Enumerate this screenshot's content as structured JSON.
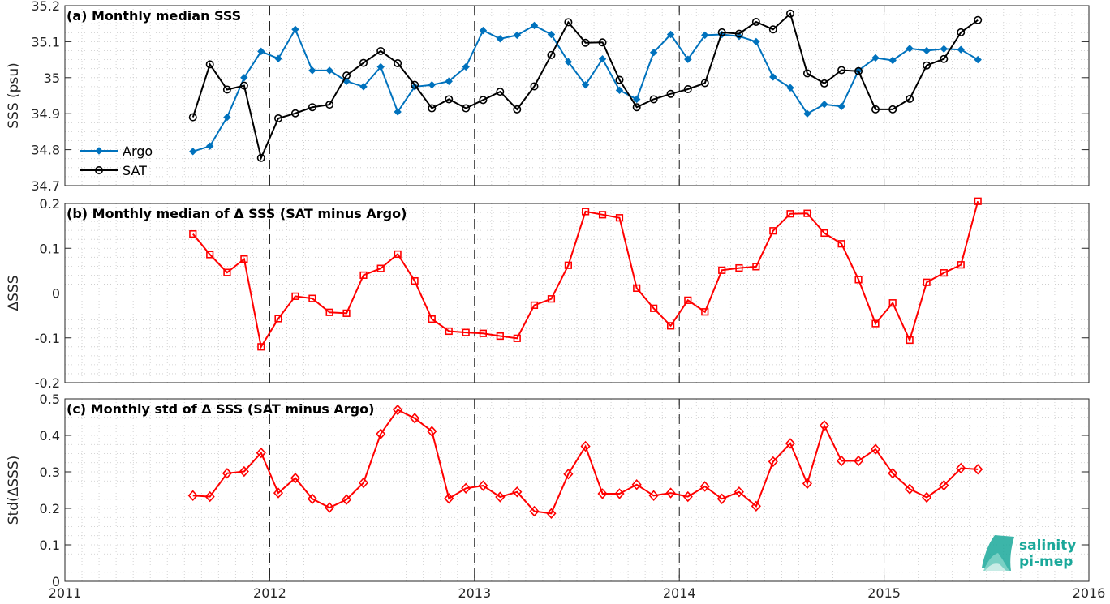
{
  "chart_data": [
    {
      "type": "line",
      "title": "(a) Monthly median SSS",
      "ylabel": "SSS (psu)",
      "xlim": [
        2011,
        2016
      ],
      "ylim": [
        34.7,
        35.2
      ],
      "yticks": [
        "34.7",
        "34.8",
        "34.9",
        "35",
        "35.1",
        "35.2"
      ],
      "ytick_values": [
        34.7,
        34.8,
        34.9,
        35.0,
        35.1,
        35.2
      ],
      "grid": "dotted",
      "legend": "left",
      "vlines": [
        2012,
        2013,
        2014,
        2015
      ],
      "x": [
        2011.625,
        2011.708,
        2011.792,
        2011.875,
        2011.958,
        2012.042,
        2012.125,
        2012.208,
        2012.292,
        2012.375,
        2012.458,
        2012.542,
        2012.625,
        2012.708,
        2012.792,
        2012.875,
        2012.958,
        2013.042,
        2013.125,
        2013.208,
        2013.292,
        2013.375,
        2013.458,
        2013.542,
        2013.625,
        2013.708,
        2013.792,
        2013.875,
        2013.958,
        2014.042,
        2014.125,
        2014.208,
        2014.292,
        2014.375,
        2014.458,
        2014.542,
        2014.625,
        2014.708,
        2014.792,
        2014.875,
        2014.958,
        2015.042,
        2015.125,
        2015.208,
        2015.292,
        2015.375,
        2015.458
      ],
      "series": [
        {
          "name": "Argo",
          "color": "#0072bd",
          "marker": "diamond-filled",
          "values": [
            34.795,
            34.81,
            34.89,
            35.0,
            35.073,
            35.053,
            35.134,
            35.02,
            35.02,
            34.99,
            34.975,
            35.03,
            34.905,
            34.975,
            34.98,
            34.99,
            35.03,
            35.131,
            35.108,
            35.118,
            35.145,
            35.12,
            35.044,
            34.98,
            35.052,
            34.965,
            34.94,
            35.07,
            35.12,
            35.051,
            35.118,
            35.12,
            35.115,
            35.1,
            35.002,
            34.972,
            34.9,
            34.926,
            34.92,
            35.02,
            35.055,
            35.048,
            35.081,
            35.075,
            35.08,
            35.078,
            35.05
          ]
        },
        {
          "name": "SAT",
          "color": "#000000",
          "marker": "circle-open",
          "values": [
            34.89,
            35.037,
            34.967,
            34.978,
            34.777,
            34.887,
            34.901,
            34.918,
            34.925,
            35.006,
            35.041,
            35.074,
            35.04,
            34.98,
            34.915,
            34.94,
            34.915,
            34.938,
            34.961,
            34.912,
            34.976,
            35.063,
            35.154,
            35.097,
            35.098,
            34.994,
            34.918,
            34.94,
            34.955,
            34.968,
            34.985,
            35.126,
            35.122,
            35.155,
            35.134,
            35.178,
            35.012,
            34.984,
            35.021,
            35.018,
            34.912,
            34.912,
            34.941,
            35.034,
            35.052,
            35.126,
            35.16
          ]
        }
      ]
    },
    {
      "type": "line",
      "title": "(b) Monthly median of Δ SSS (SAT minus Argo)",
      "ylabel": "ΔSSS",
      "xlim": [
        2011,
        2016
      ],
      "ylim": [
        -0.2,
        0.2
      ],
      "yticks": [
        "-0.2",
        "-0.1",
        "0",
        "0.1",
        "0.2"
      ],
      "ytick_values": [
        -0.2,
        -0.1,
        0,
        0.1,
        0.2
      ],
      "grid": "dotted",
      "hline": 0,
      "vlines": [
        2012,
        2013,
        2014,
        2015
      ],
      "x": [
        2011.625,
        2011.708,
        2011.792,
        2011.875,
        2011.958,
        2012.042,
        2012.125,
        2012.208,
        2012.292,
        2012.375,
        2012.458,
        2012.542,
        2012.625,
        2012.708,
        2012.792,
        2012.875,
        2012.958,
        2013.042,
        2013.125,
        2013.208,
        2013.292,
        2013.375,
        2013.458,
        2013.542,
        2013.625,
        2013.708,
        2013.792,
        2013.875,
        2013.958,
        2014.042,
        2014.125,
        2014.208,
        2014.292,
        2014.375,
        2014.458,
        2014.542,
        2014.625,
        2014.708,
        2014.792,
        2014.875,
        2014.958,
        2015.042,
        2015.125,
        2015.208,
        2015.292,
        2015.375,
        2015.458
      ],
      "series": [
        {
          "color": "#ff0000",
          "marker": "square-open",
          "values": [
            0.132,
            0.086,
            0.046,
            0.076,
            -0.12,
            -0.057,
            -0.007,
            -0.012,
            -0.043,
            -0.045,
            0.04,
            0.055,
            0.087,
            0.027,
            -0.058,
            -0.085,
            -0.088,
            -0.09,
            -0.096,
            -0.101,
            -0.027,
            -0.013,
            0.062,
            0.182,
            0.175,
            0.168,
            0.011,
            -0.034,
            -0.073,
            -0.016,
            -0.042,
            0.051,
            0.056,
            0.059,
            0.139,
            0.177,
            0.178,
            0.134,
            0.11,
            0.03,
            -0.068,
            -0.022,
            -0.105,
            0.024,
            0.045,
            0.063,
            0.205
          ]
        }
      ]
    },
    {
      "type": "line",
      "title": "(c) Monthly std of Δ SSS (SAT minus Argo)",
      "ylabel": "Std(ΔSSS)",
      "xlabel": "",
      "xlim": [
        2011,
        2016
      ],
      "ylim": [
        0,
        0.5
      ],
      "xticks": [
        "2011",
        "2012",
        "2013",
        "2014",
        "2015",
        "2016"
      ],
      "xtick_values": [
        2011,
        2012,
        2013,
        2014,
        2015,
        2016
      ],
      "yticks": [
        "0",
        "0.1",
        "0.2",
        "0.3",
        "0.4",
        "0.5"
      ],
      "ytick_values": [
        0,
        0.1,
        0.2,
        0.3,
        0.4,
        0.5
      ],
      "grid": "dotted",
      "vlines": [
        2012,
        2013,
        2014,
        2015
      ],
      "x": [
        2011.625,
        2011.708,
        2011.792,
        2011.875,
        2011.958,
        2012.042,
        2012.125,
        2012.208,
        2012.292,
        2012.375,
        2012.458,
        2012.542,
        2012.625,
        2012.708,
        2012.792,
        2012.875,
        2012.958,
        2013.042,
        2013.125,
        2013.208,
        2013.292,
        2013.375,
        2013.458,
        2013.542,
        2013.625,
        2013.708,
        2013.792,
        2013.875,
        2013.958,
        2014.042,
        2014.125,
        2014.208,
        2014.292,
        2014.375,
        2014.458,
        2014.542,
        2014.625,
        2014.708,
        2014.792,
        2014.875,
        2014.958,
        2015.042,
        2015.125,
        2015.208,
        2015.292,
        2015.375,
        2015.458
      ],
      "series": [
        {
          "color": "#ff0000",
          "marker": "diamond-open",
          "values": [
            0.235,
            0.232,
            0.296,
            0.301,
            0.352,
            0.242,
            0.283,
            0.226,
            0.202,
            0.224,
            0.27,
            0.404,
            0.47,
            0.447,
            0.411,
            0.227,
            0.255,
            0.262,
            0.231,
            0.245,
            0.192,
            0.186,
            0.294,
            0.37,
            0.24,
            0.24,
            0.265,
            0.235,
            0.242,
            0.232,
            0.26,
            0.226,
            0.245,
            0.206,
            0.328,
            0.378,
            0.268,
            0.427,
            0.33,
            0.33,
            0.362,
            0.296,
            0.253,
            0.23,
            0.263,
            0.31,
            0.307
          ]
        }
      ]
    }
  ],
  "legend": {
    "entries": [
      {
        "label": "Argo",
        "color": "#0072bd",
        "marker": "diamond-filled"
      },
      {
        "label": "SAT",
        "color": "#000000",
        "marker": "circle-open"
      }
    ]
  },
  "logo": {
    "line1": "salinity",
    "line2": "pi-mep",
    "color": "#1aa89a"
  }
}
